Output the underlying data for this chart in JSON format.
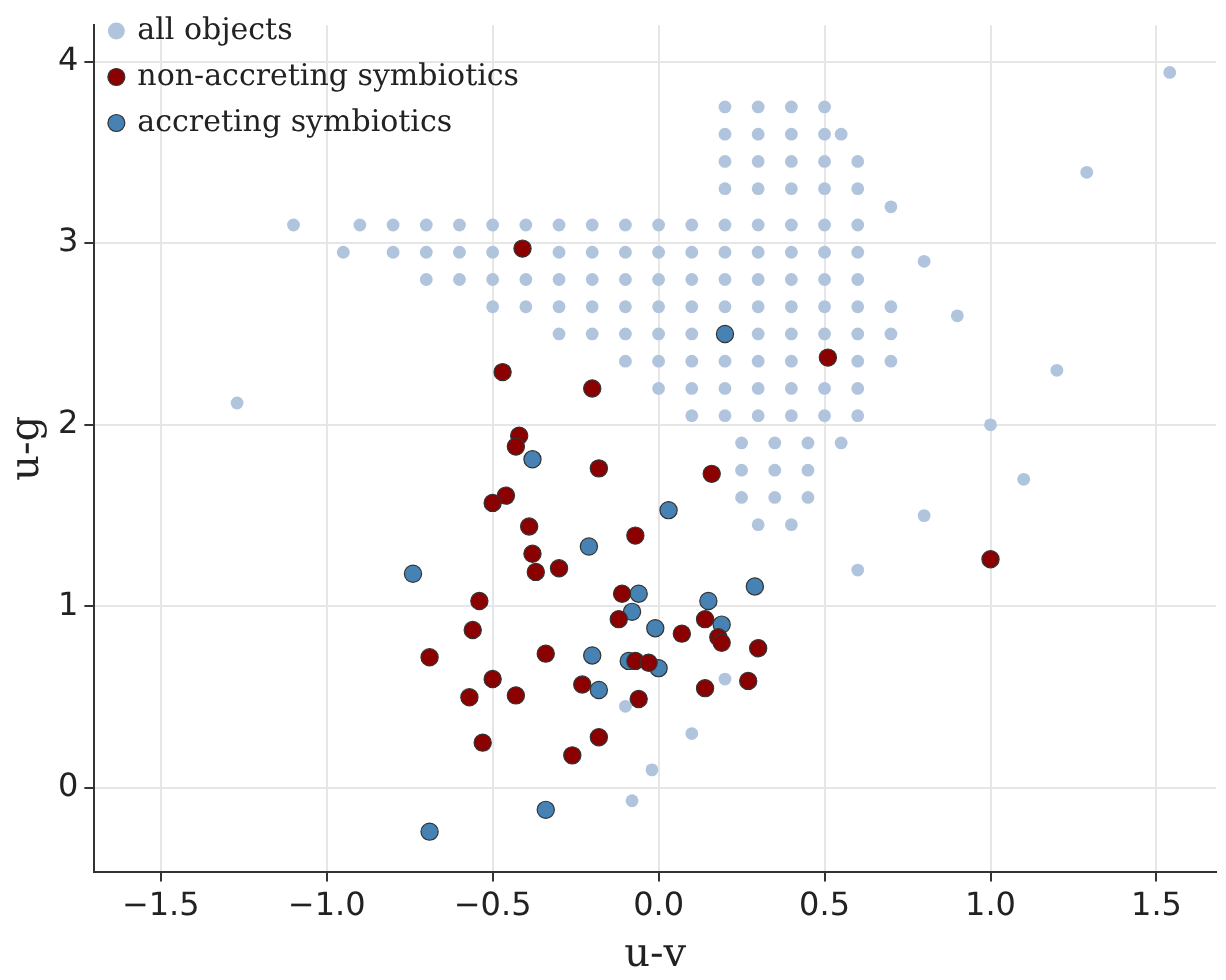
{
  "chart_data": {
    "type": "scatter",
    "xlabel": "u-v",
    "ylabel": "u-g",
    "xlim": [
      -1.7,
      1.68
    ],
    "ylim": [
      -0.46,
      4.2
    ],
    "xticks": [
      -1.5,
      {
        "value": -1,
        "label": "−1.0"
      },
      -0.5,
      {
        "value": 0,
        "label": "0.0"
      },
      0.5,
      {
        "value": 1,
        "label": "1.0"
      },
      1.5
    ],
    "yticks": [
      0,
      1,
      2,
      3,
      4
    ],
    "grid": true,
    "legend": "top left",
    "marker": "circle",
    "series": [
      {
        "name": "all objects",
        "color": "#b0c4de",
        "x": [
          0.2,
          0.3,
          0.4,
          0.5,
          0.2,
          0.3,
          0.4,
          0.5,
          0.55,
          0.2,
          0.3,
          0.4,
          0.5,
          0.6,
          0.2,
          0.3,
          0.4,
          0.5,
          0.6,
          -0.9,
          -0.8,
          -0.7,
          -0.6,
          -0.5,
          -0.4,
          -0.3,
          -0.2,
          -0.1,
          0,
          0.1,
          0.2,
          0.3,
          0.4,
          0.5,
          0.6,
          -0.95,
          -0.8,
          -0.7,
          -0.6,
          -0.5,
          -0.3,
          -0.2,
          -0.1,
          0,
          0.1,
          0.2,
          0.3,
          0.4,
          0.5,
          0.6,
          -0.7,
          -0.6,
          -0.5,
          -0.4,
          -0.3,
          -0.2,
          -0.1,
          0,
          0.1,
          0.2,
          0.3,
          0.4,
          0.5,
          0.6,
          -0.5,
          -0.4,
          -0.3,
          -0.2,
          -0.1,
          0,
          0.1,
          0.2,
          0.3,
          0.4,
          0.5,
          0.6,
          0.7,
          -0.3,
          -0.2,
          -0.1,
          0,
          0.1,
          0.3,
          0.4,
          0.5,
          0.6,
          0.7,
          -0.1,
          0,
          0.1,
          0.2,
          0.3,
          0.4,
          0.6,
          0.7,
          0,
          0.1,
          0.2,
          0.3,
          0.4,
          0.5,
          0.6,
          0.1,
          0.2,
          0.3,
          0.4,
          0.5,
          0.6,
          0.25,
          0.35,
          0.45,
          0.55,
          0.25,
          0.35,
          0.45,
          0.25,
          0.35,
          0.45,
          0.3,
          0.4,
          -1.27,
          1.54,
          1.29,
          -0.02,
          -0.08,
          1.2,
          1.0,
          0.8,
          0.6,
          0.2,
          -0.1,
          0.1,
          0.9,
          1.1,
          -1.1,
          0.7,
          0.8
        ],
        "values": [
          3.75,
          3.75,
          3.75,
          3.75,
          3.6,
          3.6,
          3.6,
          3.6,
          3.6,
          3.45,
          3.45,
          3.45,
          3.45,
          3.45,
          3.3,
          3.3,
          3.3,
          3.3,
          3.3,
          3.1,
          3.1,
          3.1,
          3.1,
          3.1,
          3.1,
          3.1,
          3.1,
          3.1,
          3.1,
          3.1,
          3.1,
          3.1,
          3.1,
          3.1,
          3.1,
          2.95,
          2.95,
          2.95,
          2.95,
          2.95,
          2.95,
          2.95,
          2.95,
          2.95,
          2.95,
          2.95,
          2.95,
          2.95,
          2.95,
          2.95,
          2.8,
          2.8,
          2.8,
          2.8,
          2.8,
          2.8,
          2.8,
          2.8,
          2.8,
          2.8,
          2.8,
          2.8,
          2.8,
          2.8,
          2.65,
          2.65,
          2.65,
          2.65,
          2.65,
          2.65,
          2.65,
          2.65,
          2.65,
          2.65,
          2.65,
          2.65,
          2.65,
          2.5,
          2.5,
          2.5,
          2.5,
          2.5,
          2.5,
          2.5,
          2.5,
          2.5,
          2.5,
          2.35,
          2.35,
          2.35,
          2.35,
          2.35,
          2.35,
          2.35,
          2.35,
          2.2,
          2.2,
          2.2,
          2.2,
          2.2,
          2.2,
          2.2,
          2.05,
          2.05,
          2.05,
          2.05,
          2.05,
          2.05,
          1.9,
          1.9,
          1.9,
          1.9,
          1.75,
          1.75,
          1.75,
          1.6,
          1.6,
          1.6,
          1.45,
          1.45,
          2.12,
          3.94,
          3.39,
          0.1,
          -0.07,
          2.3,
          2.0,
          1.5,
          1.2,
          0.6,
          0.45,
          0.3,
          2.6,
          1.7,
          3.1,
          3.2,
          2.9
        ]
      },
      {
        "name": "non-accreting symbiotics",
        "color": "#8b0000",
        "x": [
          -0.42,
          -0.43,
          -0.18,
          0.16,
          -0.46,
          -0.5,
          -0.39,
          -0.07,
          -0.38,
          -0.37,
          -0.3,
          -0.54,
          -0.11,
          -0.12,
          -0.56,
          0.07,
          0.14,
          0.18,
          0.19,
          0.3,
          -0.69,
          -0.34,
          -0.07,
          -0.03,
          -0.5,
          -0.57,
          -0.43,
          -0.23,
          0.14,
          0.27,
          -0.06,
          -0.53,
          -0.18,
          -0.26,
          -0.41,
          -0.47,
          -0.2,
          0.51,
          1.0
        ],
        "values": [
          1.94,
          1.88,
          1.76,
          1.73,
          1.61,
          1.57,
          1.44,
          1.39,
          1.29,
          1.19,
          1.21,
          1.03,
          1.07,
          0.93,
          0.87,
          0.85,
          0.93,
          0.83,
          0.8,
          0.77,
          0.72,
          0.74,
          0.7,
          0.69,
          0.6,
          0.5,
          0.51,
          0.57,
          0.55,
          0.59,
          0.49,
          0.25,
          0.28,
          0.18,
          2.97,
          2.29,
          2.2,
          2.37,
          1.26
        ]
      },
      {
        "name": "accreting symbiotics",
        "color": "#4682b4",
        "x": [
          -0.38,
          0.2,
          0.03,
          -0.21,
          -0.74,
          0.29,
          -0.06,
          0.15,
          -0.08,
          -0.01,
          0.19,
          -0.2,
          -0.09,
          0.0,
          -0.18,
          -0.34,
          -0.69
        ],
        "values": [
          1.81,
          2.5,
          1.53,
          1.33,
          1.18,
          1.11,
          1.07,
          1.03,
          0.97,
          0.88,
          0.9,
          0.73,
          0.7,
          0.66,
          0.54,
          -0.12,
          -0.24
        ]
      }
    ]
  }
}
